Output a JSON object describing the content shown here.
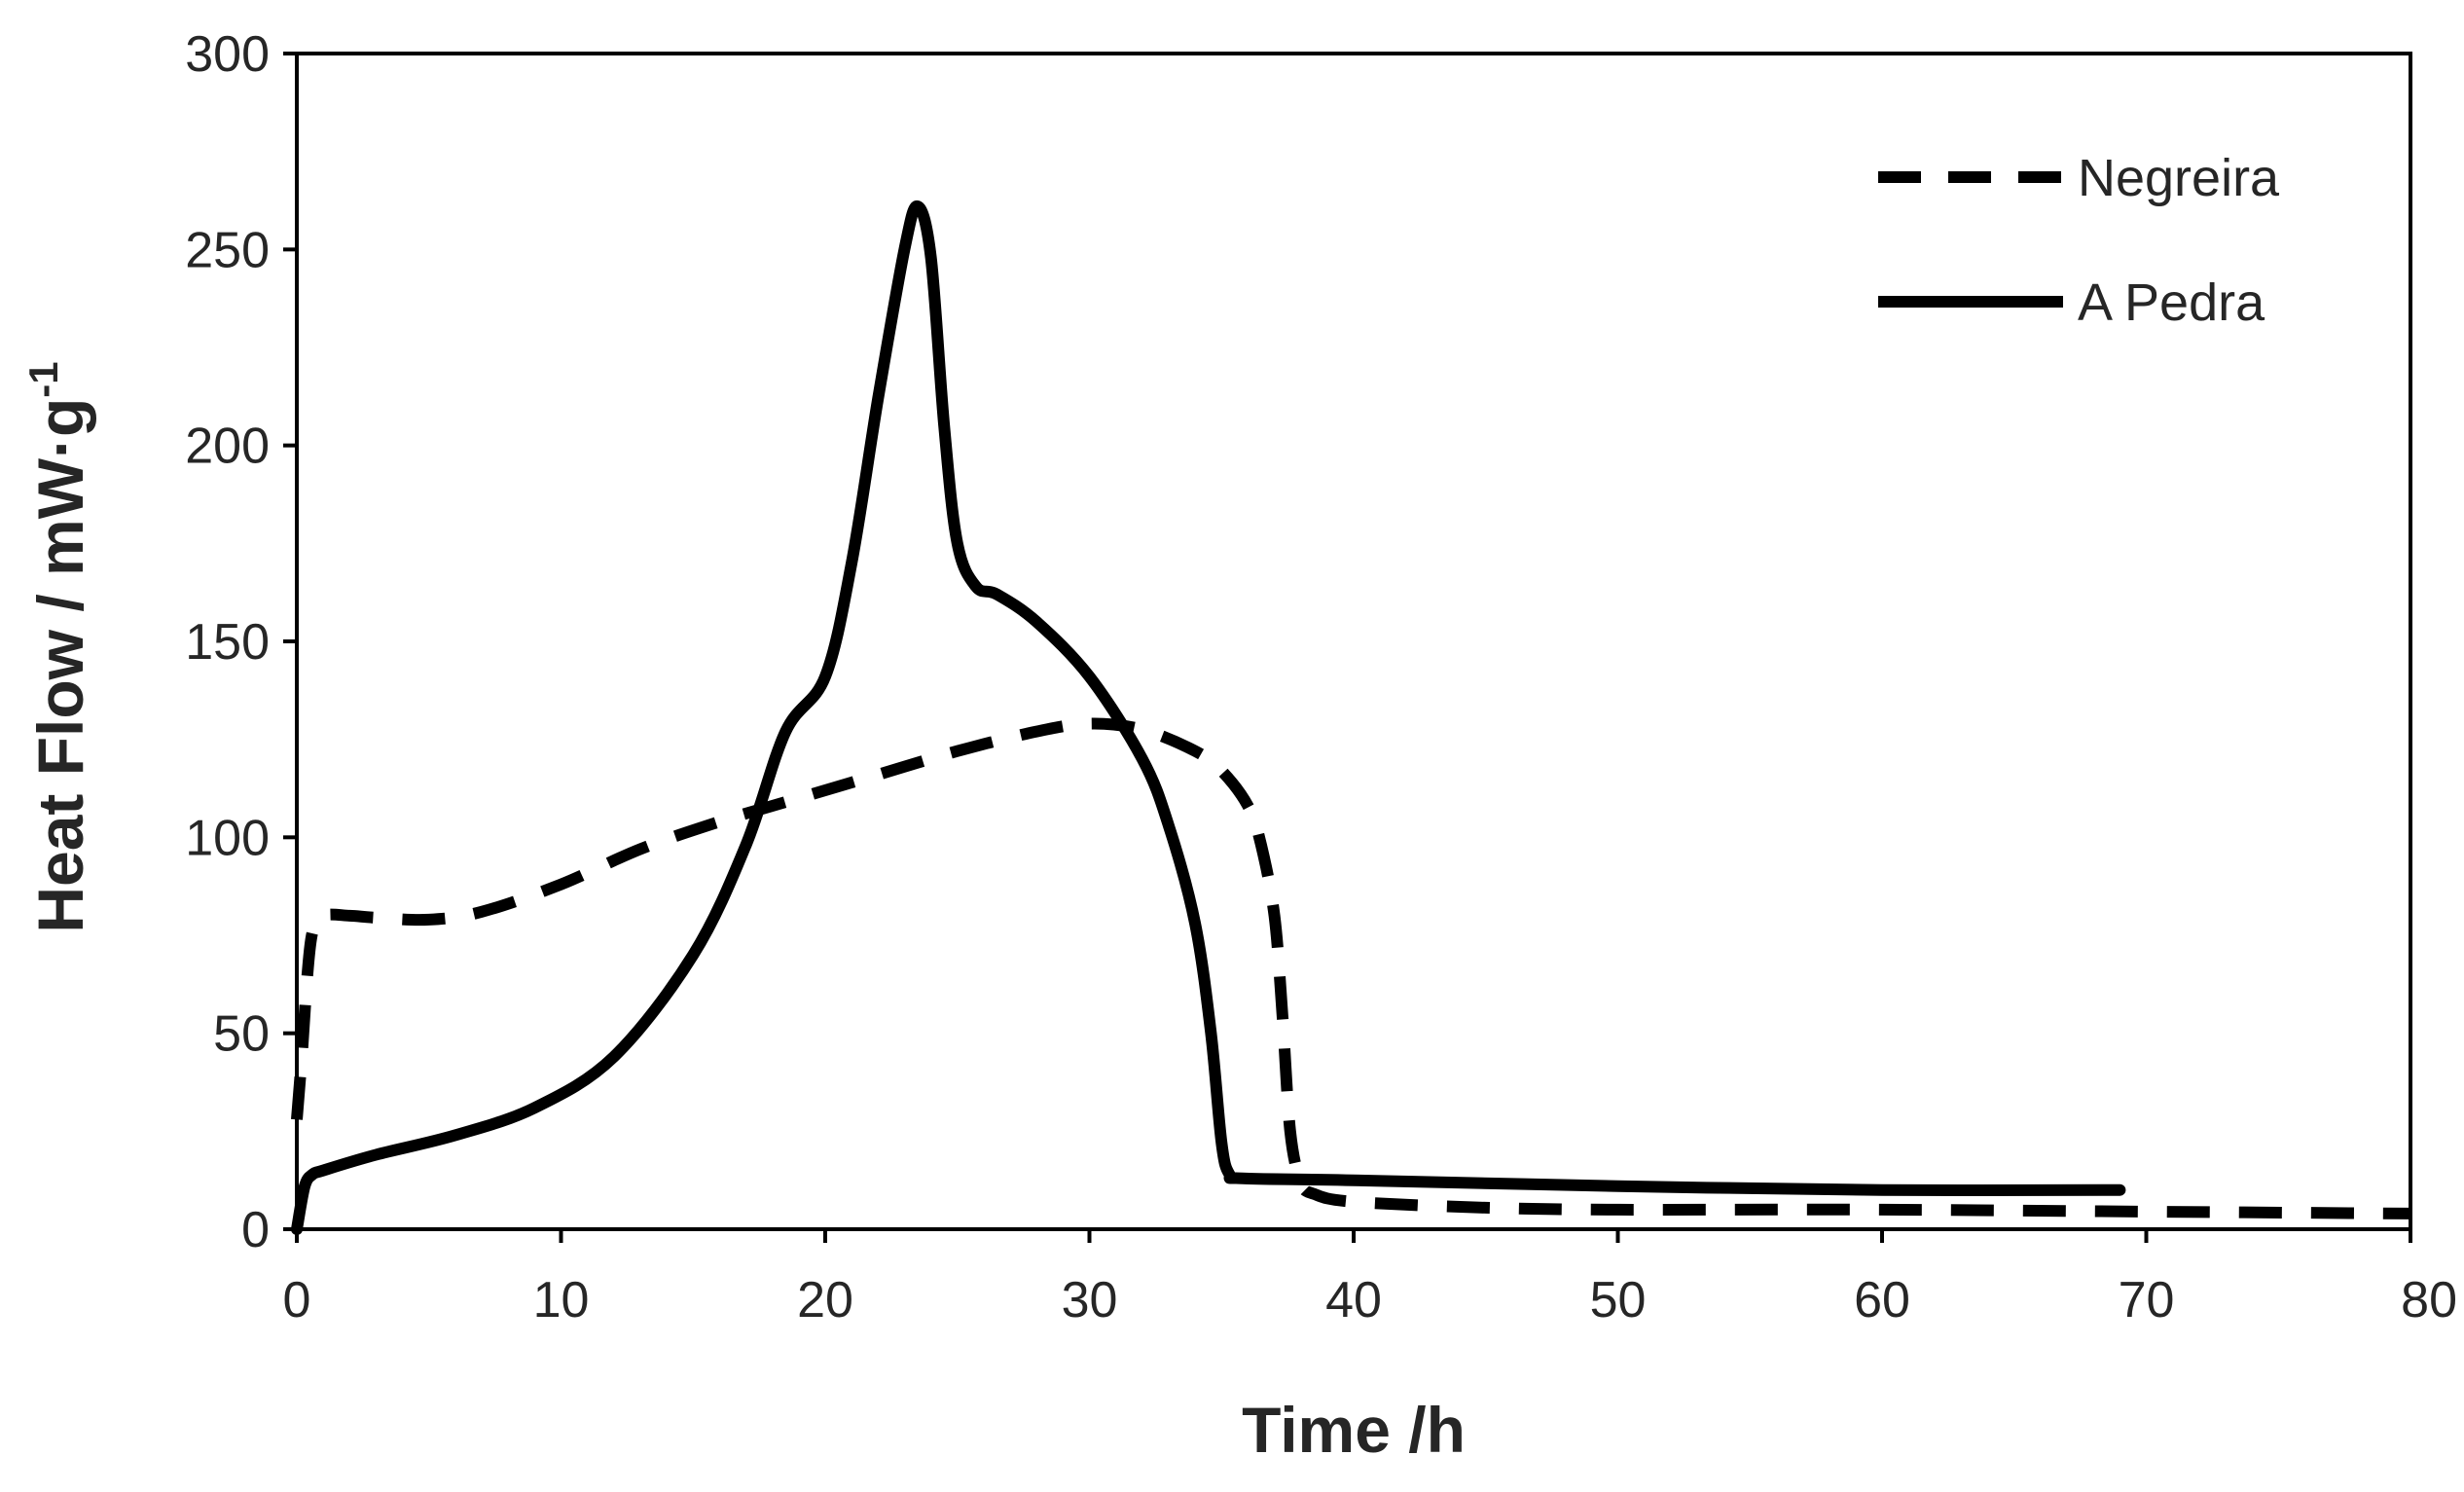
{
  "chart_data": {
    "type": "line",
    "title": "",
    "xlabel": "Time /h",
    "ylabel": "Heat Flow / mW·g",
    "ylabel_superscript": "-1",
    "xlim": [
      0,
      80
    ],
    "ylim": [
      0,
      300
    ],
    "xticks": [
      0,
      10,
      20,
      30,
      40,
      50,
      60,
      70,
      80
    ],
    "yticks": [
      0,
      50,
      100,
      150,
      200,
      250,
      300
    ],
    "grid": false,
    "legend_position": "top-right",
    "series": [
      {
        "name": "Negreira",
        "style": "dashed",
        "color": "#000000",
        "x": [
          0,
          0.2,
          0.4,
          0.6,
          1,
          2,
          3,
          5,
          7,
          10,
          13,
          16,
          19,
          22,
          25,
          28,
          30,
          32,
          34,
          35,
          36,
          36.5,
          37,
          37.3,
          37.6,
          38,
          38.5,
          40,
          45,
          50,
          60,
          70,
          80
        ],
        "y": [
          28,
          45,
          65,
          76,
          80,
          80,
          79.5,
          79,
          81,
          88,
          97,
          104,
          110,
          116,
          122,
          127,
          129,
          127.5,
          122,
          117,
          108,
          98,
          80,
          55,
          25,
          12,
          9,
          7,
          5.5,
          5,
          5,
          4.5,
          4
        ]
      },
      {
        "name": "A Pedra",
        "style": "solid",
        "color": "#000000",
        "x": [
          0,
          0.3,
          0.6,
          1,
          3,
          6,
          9,
          12,
          15,
          17,
          18.5,
          20,
          21,
          22,
          23,
          23.5,
          24,
          24.5,
          25,
          25.7,
          26.5,
          28,
          30,
          32,
          33,
          34,
          34.6,
          35,
          35.3,
          35.8,
          40,
          50,
          60,
          69
        ],
        "y": [
          0,
          11,
          14,
          15,
          19,
          24,
          31,
          44,
          70,
          98,
          127,
          141,
          170,
          212,
          250,
          261,
          248,
          205,
          175,
          164,
          162,
          155,
          141,
          120,
          103,
          78,
          50,
          22,
          14,
          13,
          12.5,
          11,
          10,
          10
        ]
      }
    ]
  }
}
